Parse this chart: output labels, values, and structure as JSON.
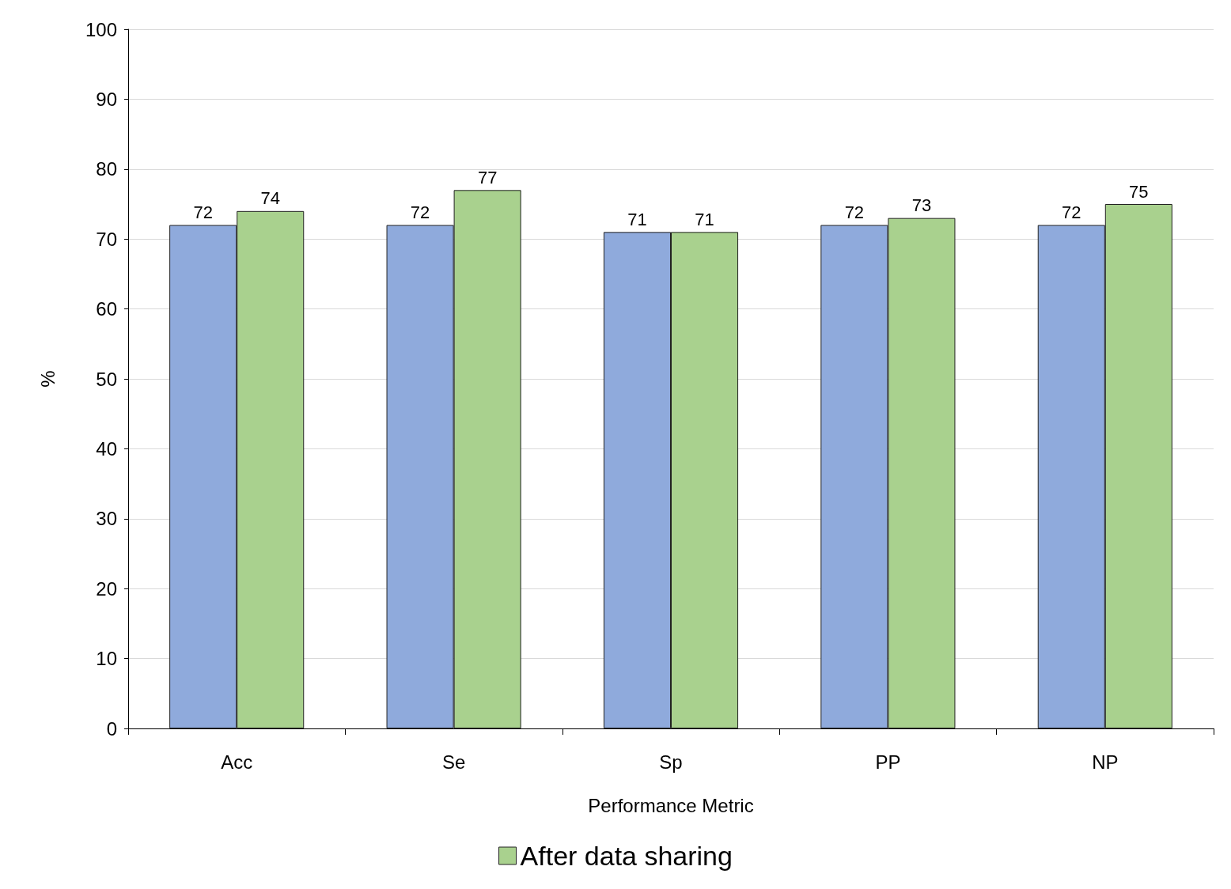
{
  "chart_data": {
    "type": "bar",
    "xlabel": "Performance Metric",
    "ylabel": "%",
    "categories": [
      "Acc",
      "Se",
      "Sp",
      "PP",
      "NP"
    ],
    "series": [
      {
        "color": "#8faadc",
        "values": [
          72,
          72,
          71,
          72,
          72
        ]
      },
      {
        "name": "After data sharing",
        "color": "#a9d18e",
        "values": [
          74,
          77,
          71,
          73,
          75
        ]
      }
    ],
    "ylim": [
      0,
      100
    ],
    "yticks": [
      0,
      10,
      20,
      30,
      40,
      50,
      60,
      70,
      80,
      90,
      100
    ],
    "grid": "y",
    "legend": "bottom",
    "data_labels": true
  }
}
